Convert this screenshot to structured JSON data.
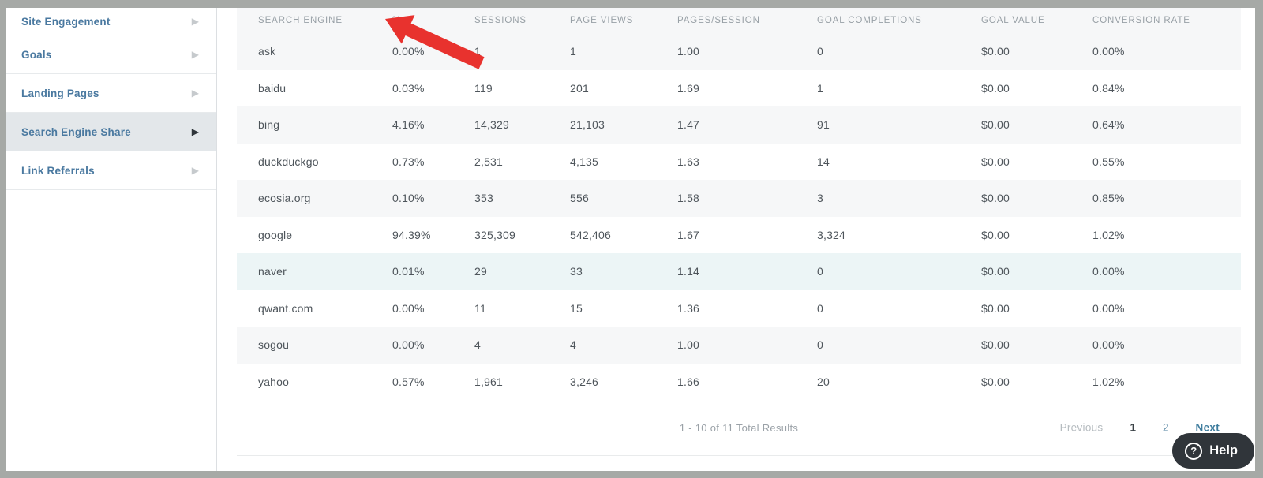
{
  "sidebar": {
    "arrow_icon": "▶",
    "items": [
      {
        "label": "Site Engagement",
        "selected": false
      },
      {
        "label": "Goals",
        "selected": false
      },
      {
        "label": "Landing Pages",
        "selected": false
      },
      {
        "label": "Search Engine Share",
        "selected": true
      },
      {
        "label": "Link Referrals",
        "selected": false
      }
    ]
  },
  "table": {
    "columns": [
      "SEARCH ENGINE",
      "%",
      "SESSIONS",
      "PAGE VIEWS",
      "PAGES/SESSION",
      "GOAL COMPLETIONS",
      "GOAL VALUE",
      "CONVERSION RATE"
    ],
    "rows": [
      [
        "ask",
        "0.00%",
        "1",
        "1",
        "1.00",
        "0",
        "$0.00",
        "0.00%"
      ],
      [
        "baidu",
        "0.03%",
        "119",
        "201",
        "1.69",
        "1",
        "$0.00",
        "0.84%"
      ],
      [
        "bing",
        "4.16%",
        "14,329",
        "21,103",
        "1.47",
        "91",
        "$0.00",
        "0.64%"
      ],
      [
        "duckduckgo",
        "0.73%",
        "2,531",
        "4,135",
        "1.63",
        "14",
        "$0.00",
        "0.55%"
      ],
      [
        "ecosia.org",
        "0.10%",
        "353",
        "556",
        "1.58",
        "3",
        "$0.00",
        "0.85%"
      ],
      [
        "google",
        "94.39%",
        "325,309",
        "542,406",
        "1.67",
        "3,324",
        "$0.00",
        "1.02%"
      ],
      [
        "naver",
        "0.01%",
        "29",
        "33",
        "1.14",
        "0",
        "$0.00",
        "0.00%"
      ],
      [
        "qwant.com",
        "0.00%",
        "11",
        "15",
        "1.36",
        "0",
        "$0.00",
        "0.00%"
      ],
      [
        "sogou",
        "0.00%",
        "4",
        "4",
        "1.00",
        "0",
        "$0.00",
        "0.00%"
      ],
      [
        "yahoo",
        "0.57%",
        "1,961",
        "3,246",
        "1.66",
        "20",
        "$0.00",
        "1.02%"
      ]
    ],
    "highlighted_row": "naver"
  },
  "footer": {
    "results_text": "1 - 10 of 11 Total Results",
    "pagination": {
      "previous_label": "Previous",
      "pages": [
        "1",
        "2"
      ],
      "current_page": "1",
      "next_label": "Next"
    }
  },
  "help": {
    "label": "Help",
    "icon": "?"
  },
  "annotation": {
    "type": "red-arrow",
    "points_at": "% column header",
    "color": "#e8322e"
  }
}
